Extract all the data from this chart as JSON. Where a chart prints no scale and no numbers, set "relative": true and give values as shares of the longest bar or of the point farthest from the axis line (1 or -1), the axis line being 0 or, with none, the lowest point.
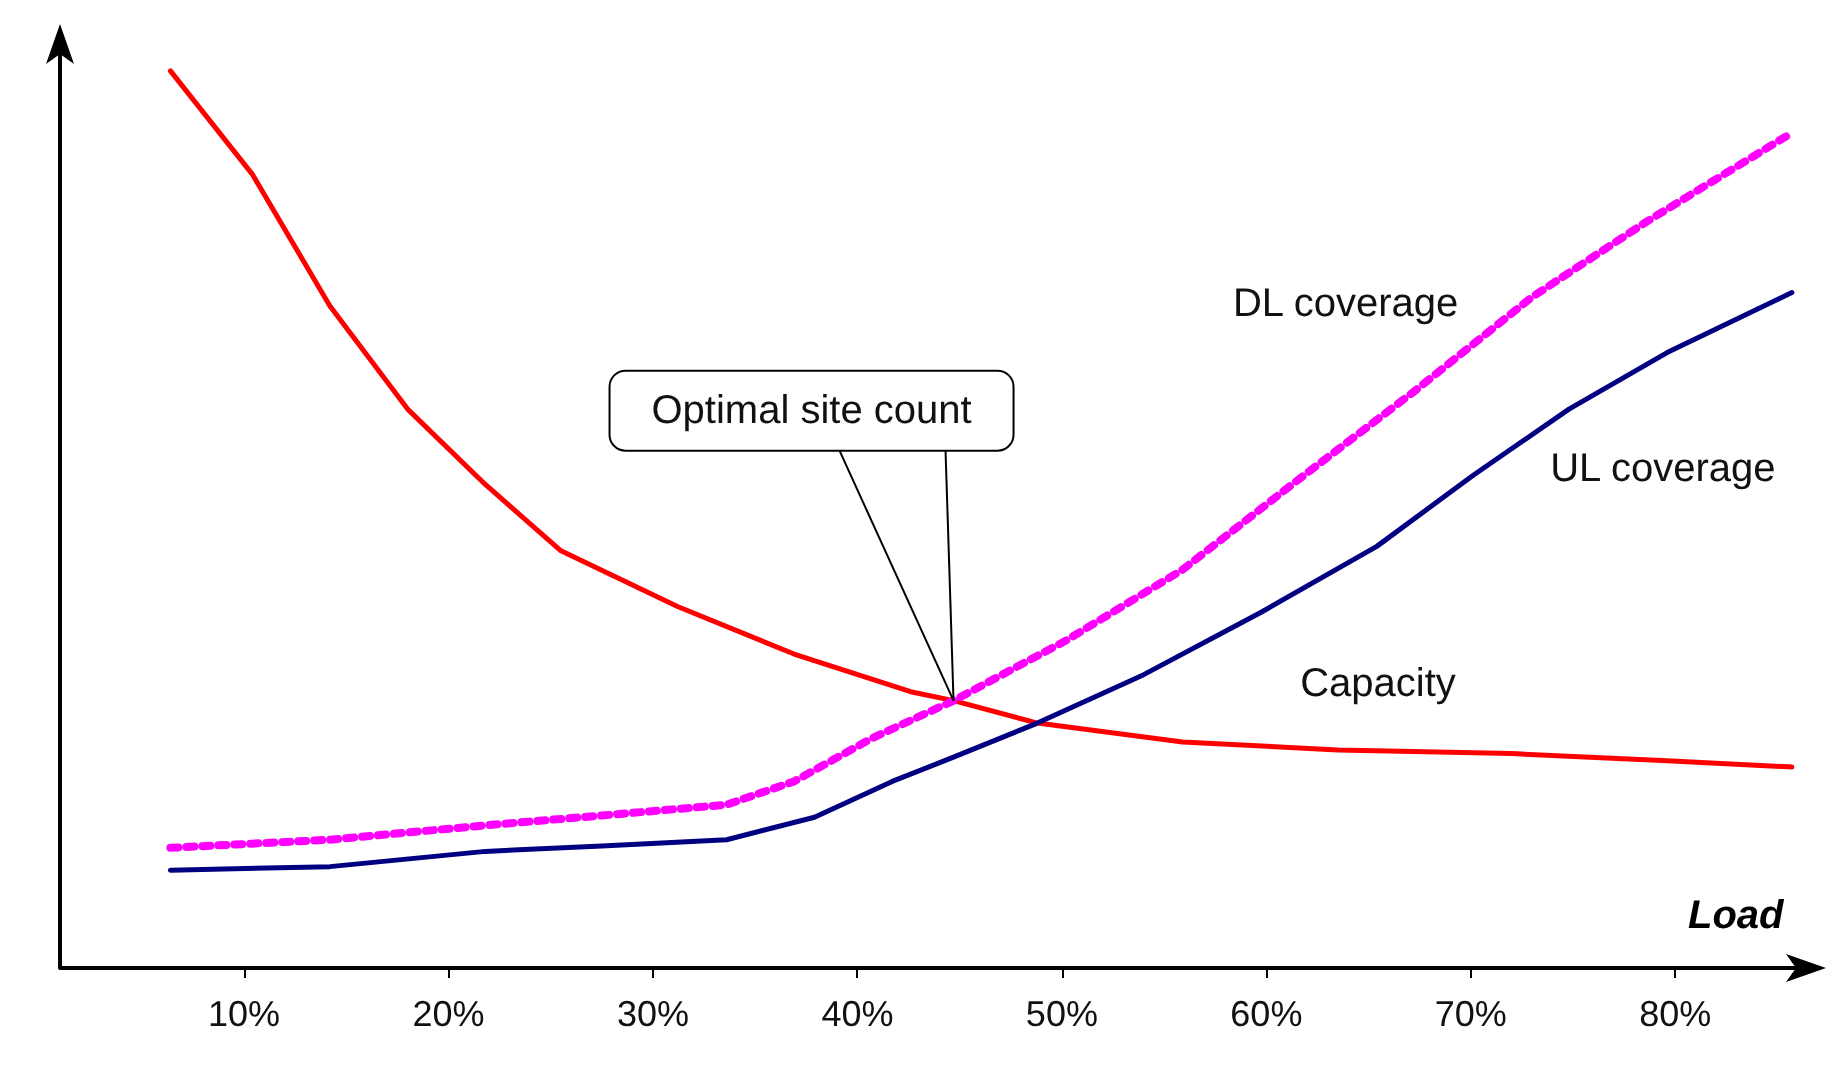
{
  "chart_data": {
    "type": "line",
    "relative": true,
    "xlabel": "Load",
    "xlim": [
      1,
      86
    ],
    "xticks": [
      {
        "value": 10,
        "label": "10%"
      },
      {
        "value": 20,
        "label": "20%"
      },
      {
        "value": 30,
        "label": "30%"
      },
      {
        "value": 40,
        "label": "40%"
      },
      {
        "value": 50,
        "label": "50%"
      },
      {
        "value": 60,
        "label": "60%"
      },
      {
        "value": 70,
        "label": "70%"
      },
      {
        "value": 80,
        "label": "80%"
      }
    ],
    "grid": false,
    "legend": false,
    "marker": "none",
    "annotations": [
      {
        "text": "Optimal site count",
        "x": 44.7,
        "y": 0.298
      }
    ],
    "series": [
      {
        "name": "Capacity",
        "color": "#ff0000",
        "line_style": "solid",
        "x": [
          6.4,
          10.4,
          14.2,
          18,
          21.8,
          25.5,
          31.2,
          36.9,
          42.6,
          44.7,
          48.8,
          55.9,
          63.5,
          72,
          79.6,
          85.7
        ],
        "values": [
          1.0,
          0.885,
          0.738,
          0.623,
          0.539,
          0.465,
          0.403,
          0.35,
          0.308,
          0.298,
          0.273,
          0.252,
          0.243,
          0.239,
          0.231,
          0.224
        ]
      },
      {
        "name": "UL coverage",
        "color": "#000080",
        "line_style": "solid",
        "x": [
          6.4,
          14.2,
          21.8,
          27.5,
          33.6,
          37.9,
          41.7,
          44.7,
          48.8,
          54,
          59.7,
          65.4,
          70.1,
          74.8,
          79.6,
          85.7
        ],
        "values": [
          0.109,
          0.113,
          0.13,
          0.136,
          0.143,
          0.168,
          0.208,
          0.235,
          0.273,
          0.327,
          0.396,
          0.47,
          0.549,
          0.623,
          0.686,
          0.753
        ]
      },
      {
        "name": "DL coverage",
        "color": "#ff00ff",
        "line_style": "dotted",
        "x": [
          6.4,
          14.2,
          21.8,
          27.5,
          33.6,
          36.9,
          40.7,
          44.7,
          50.2,
          55.9,
          61.6,
          67.3,
          73,
          78.6,
          85.7
        ],
        "values": [
          0.134,
          0.143,
          0.159,
          0.17,
          0.182,
          0.208,
          0.256,
          0.298,
          0.365,
          0.444,
          0.545,
          0.644,
          0.748,
          0.832,
          0.931
        ]
      }
    ]
  }
}
